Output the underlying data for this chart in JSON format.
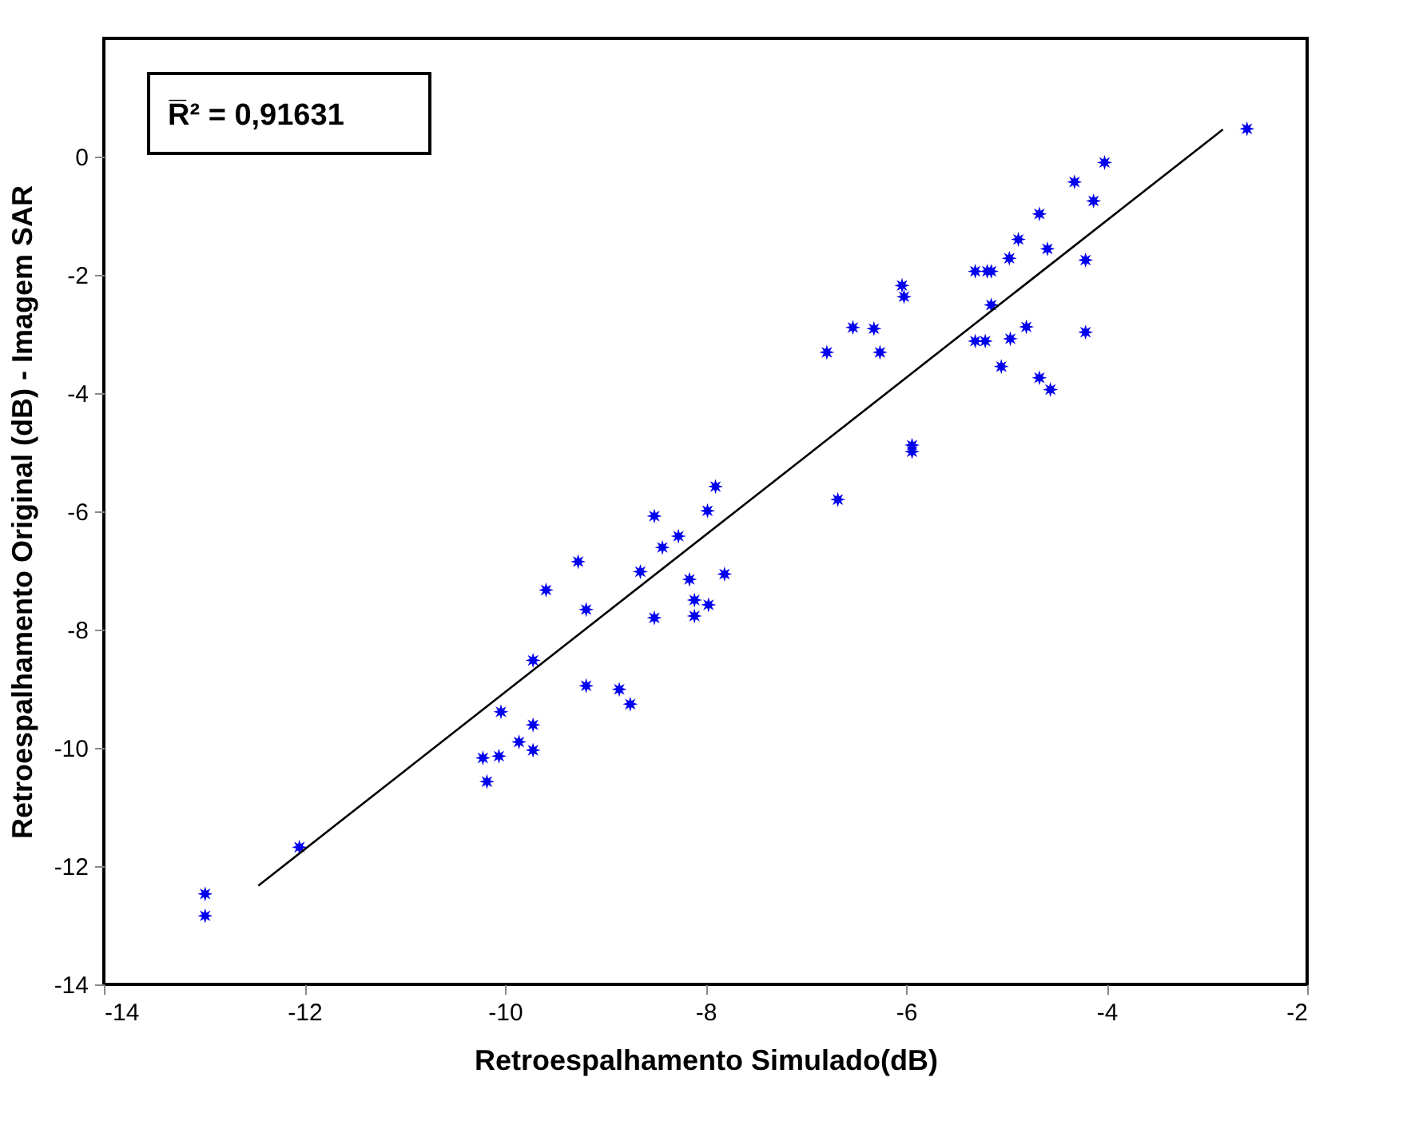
{
  "chart_data": {
    "type": "scatter",
    "xlabel": "Retroespalhamento Simulado(dB)",
    "ylabel": "Retroespalhamento Original (dB) - Imagem SAR",
    "annotations": [
      "R̅² = 0,91631"
    ],
    "xlim": [
      -14,
      -2
    ],
    "xticks": [
      -14,
      -12,
      -10,
      -8,
      -6,
      -4,
      -2
    ],
    "ylim": [
      -14,
      2
    ],
    "yticks": [
      -14,
      -12,
      -10,
      -8,
      -6,
      -4,
      -2,
      0
    ],
    "grid": false,
    "series": [
      {
        "color": "#0000ee",
        "marker": "star",
        "x": [
          -2.6,
          -4.02,
          -4.32,
          -4.13,
          -4.67,
          -4.88,
          -4.97,
          -4.59,
          -4.21,
          -5.31,
          -5.19,
          -5.15,
          -6.04,
          -6.02,
          -5.15,
          -6.53,
          -6.32,
          -6.79,
          -6.26,
          -5.31,
          -5.21,
          -4.96,
          -4.8,
          -4.21,
          -5.05,
          -4.67,
          -4.56,
          -5.94,
          -5.94,
          -6.68,
          -7.9,
          -7.98,
          -8.51,
          -8.27,
          -8.43,
          -8.65,
          -8.16,
          -7.81,
          -9.27,
          -9.59,
          -9.19,
          -8.51,
          -8.11,
          -7.97,
          -8.11,
          -9.72,
          -9.19,
          -8.86,
          -8.75,
          -10.04,
          -9.72,
          -9.86,
          -9.72,
          -10.22,
          -10.06,
          -10.18,
          -12.05,
          -12.99,
          -12.99
        ],
        "values": [
          0.47,
          -0.1,
          -0.43,
          -0.75,
          -0.97,
          -1.4,
          -1.72,
          -1.56,
          -1.75,
          -1.94,
          -1.94,
          -1.94,
          -2.18,
          -2.37,
          -2.51,
          -2.89,
          -2.91,
          -3.31,
          -3.31,
          -3.12,
          -3.12,
          -3.08,
          -2.88,
          -2.97,
          -3.55,
          -3.74,
          -3.94,
          -4.88,
          -4.99,
          -5.8,
          -5.58,
          -5.99,
          -6.08,
          -6.42,
          -6.61,
          -7.02,
          -7.15,
          -7.06,
          -6.85,
          -7.33,
          -7.66,
          -7.8,
          -7.5,
          -7.58,
          -7.77,
          -8.52,
          -8.95,
          -9.01,
          -9.26,
          -9.39,
          -9.61,
          -9.9,
          -10.04,
          -10.17,
          -10.14,
          -10.57,
          -11.68,
          -12.47,
          -12.84
        ]
      },
      {
        "type": "line",
        "color": "#000000",
        "line_style": "solid",
        "marker": "none",
        "x": [
          -12.46,
          -2.84
        ],
        "values": [
          -12.33,
          0.46
        ]
      }
    ]
  }
}
